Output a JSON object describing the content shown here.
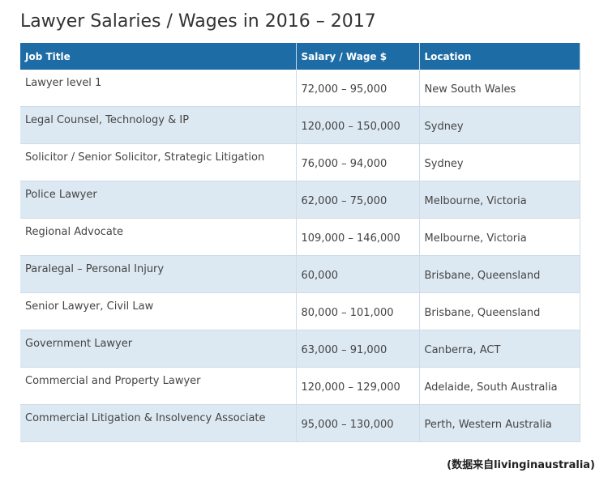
{
  "header": {
    "title": "Lawyer Salaries / Wages in 2016 – 2017"
  },
  "table": {
    "columns": [
      "Job Title",
      "Salary / Wage $",
      "Location"
    ],
    "rows": [
      [
        "Lawyer level 1",
        "72,000 – 95,000",
        "New South Wales"
      ],
      [
        "Legal Counsel, Technology & IP",
        "120,000 – 150,000",
        "Sydney"
      ],
      [
        "Solicitor / Senior Solicitor, Strategic Litigation",
        "76,000 – 94,000",
        "Sydney"
      ],
      [
        "Police Lawyer",
        "62,000 – 75,000",
        "Melbourne, Victoria"
      ],
      [
        "Regional Advocate",
        "109,000 – 146,000",
        "Melbourne, Victoria"
      ],
      [
        "Paralegal – Personal Injury",
        "60,000",
        "Brisbane, Queensland"
      ],
      [
        "Senior Lawyer, Civil Law",
        "80,000 – 101,000",
        "Brisbane, Queensland"
      ],
      [
        "Government Lawyer",
        "63,000 – 91,000",
        "Canberra, ACT"
      ],
      [
        "Commercial and Property Lawyer",
        "120,000 – 129,000",
        "Adelaide, South Australia"
      ],
      [
        "Commercial Litigation & Insolvency Associate",
        "95,000 – 130,000",
        "Perth, Western Australia"
      ]
    ]
  },
  "caption": "(数据来自livinginaustralia)"
}
